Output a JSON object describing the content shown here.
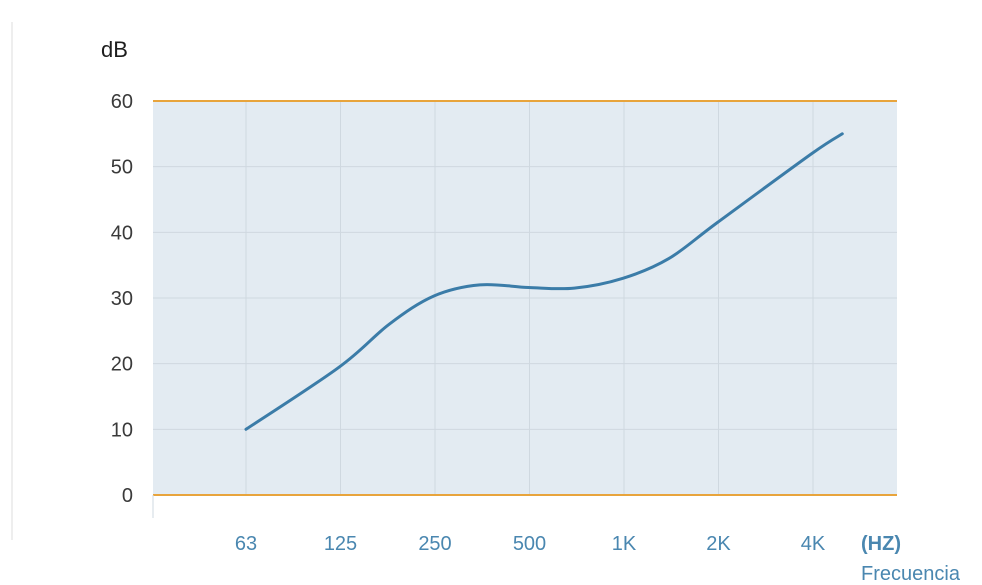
{
  "chart_data": {
    "type": "line",
    "ylabel": "dB",
    "xunit": "(HZ)",
    "xlabel": "Frecuencia",
    "categories": [
      "63",
      "125",
      "250",
      "500",
      "1K",
      "2K",
      "4K"
    ],
    "ylim": [
      0,
      60
    ],
    "yticks": [
      "0",
      "10",
      "20",
      "30",
      "40",
      "50",
      "60"
    ],
    "series": [
      {
        "x": [
          63,
          125,
          180,
          250,
          350,
          500,
          700,
          1000,
          1400,
          2000,
          4000,
          5000
        ],
        "y": [
          10,
          19.5,
          26,
          30.3,
          32,
          31.6,
          31.5,
          33,
          36,
          41.5,
          52,
          55
        ]
      }
    ],
    "grid": true,
    "colors": {
      "plot_background": "#e3ebf2",
      "grid": "#cfd8e0",
      "boundary": "#e8a43c",
      "line": "#3b7ca8",
      "x_tick_text": "#4a87b0"
    }
  }
}
